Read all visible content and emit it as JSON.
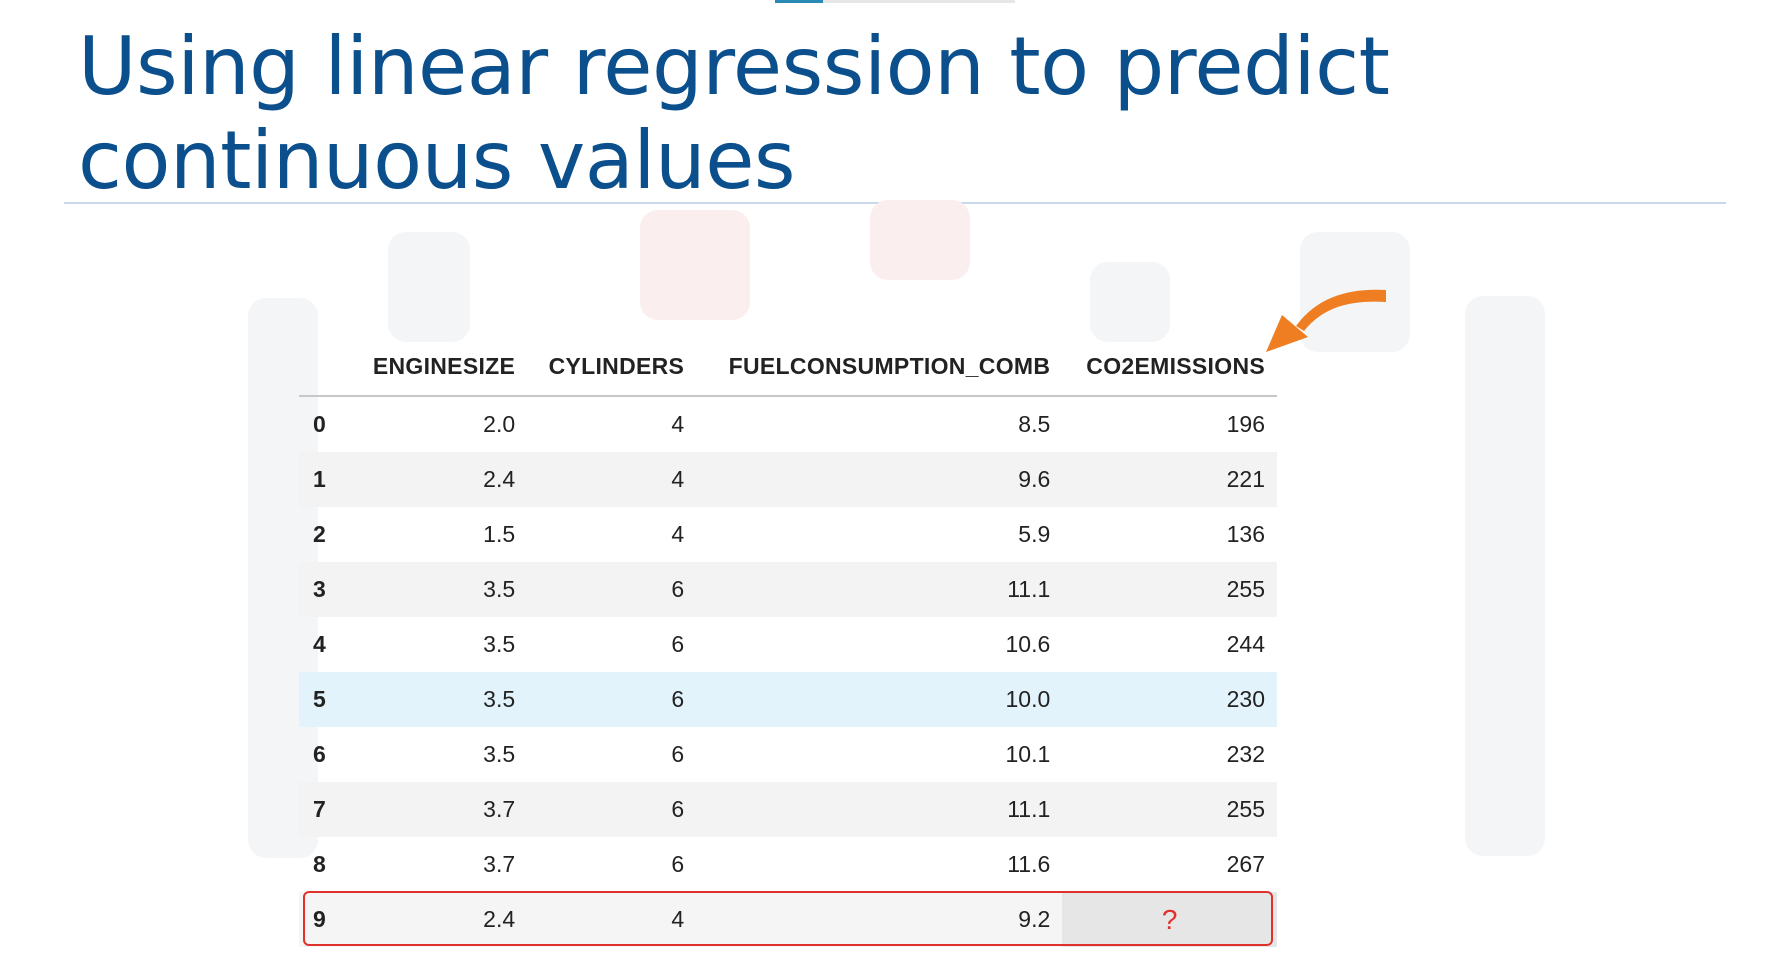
{
  "slide": {
    "title_line1": "Using linear regression to predict",
    "title_line2": "continuous values"
  },
  "table": {
    "columns": [
      "",
      "ENGINESIZE",
      "CYLINDERS",
      "FUELCONSUMPTION_COMB",
      "CO2EMISSIONS"
    ],
    "rows": [
      [
        "0",
        "2.0",
        "4",
        "8.5",
        "196"
      ],
      [
        "1",
        "2.4",
        "4",
        "9.6",
        "221"
      ],
      [
        "2",
        "1.5",
        "4",
        "5.9",
        "136"
      ],
      [
        "3",
        "3.5",
        "6",
        "11.1",
        "255"
      ],
      [
        "4",
        "3.5",
        "6",
        "10.6",
        "244"
      ],
      [
        "5",
        "3.5",
        "6",
        "10.0",
        "230"
      ],
      [
        "6",
        "3.5",
        "6",
        "10.1",
        "232"
      ],
      [
        "7",
        "3.7",
        "6",
        "11.1",
        "255"
      ],
      [
        "8",
        "3.7",
        "6",
        "11.6",
        "267"
      ],
      [
        "9",
        "2.4",
        "4",
        "9.2",
        "?"
      ]
    ]
  },
  "colors": {
    "title": "#0b4f8c",
    "highlight_row": "#e3f3fc",
    "outline": "#e0312a",
    "arrow": "#ef7d22"
  },
  "icons": {
    "arrow": "curved-arrow-icon"
  }
}
